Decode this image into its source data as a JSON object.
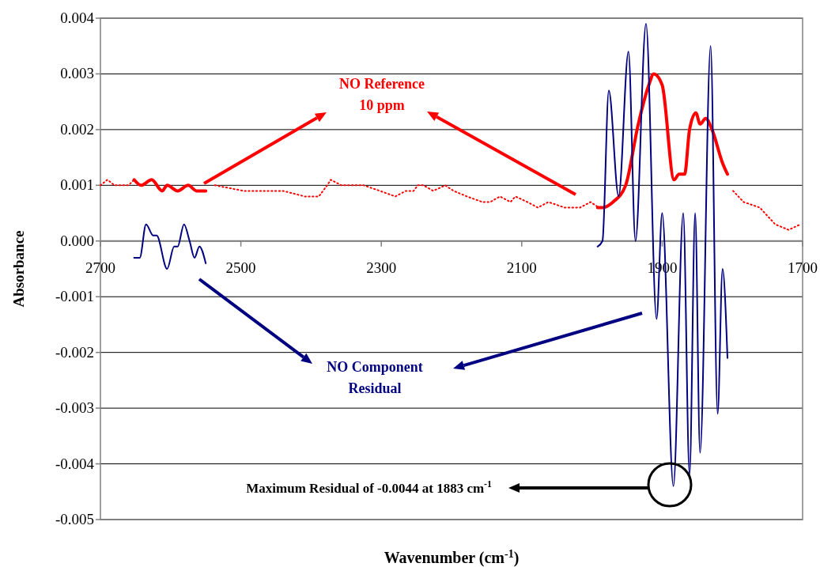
{
  "chart_data": {
    "type": "line",
    "xlabel": "Wavenumber (cm$^{-1}$)",
    "ylabel": "Absorbance",
    "xlim": [
      2700,
      1700
    ],
    "ylim": [
      -0.005,
      0.004
    ],
    "xticks": [
      2700,
      2500,
      2300,
      2100,
      1900,
      1700
    ],
    "yticks": [
      {
        "value": 0.004,
        "label": "0.004"
      },
      {
        "value": 0.003,
        "label": "0.003"
      },
      {
        "value": 0.002,
        "label": "0.002"
      },
      {
        "value": 0.001,
        "label": "0.001"
      },
      {
        "value": 0,
        "label": "0.000"
      },
      {
        "value": -0.001,
        "label": "-0.001"
      },
      {
        "value": -0.002,
        "label": "-0.002"
      },
      {
        "value": -0.003,
        "label": "-0.003"
      },
      {
        "value": -0.004,
        "label": "-0.004"
      },
      {
        "value": -0.005,
        "label": "-0.005"
      }
    ],
    "grid": "y",
    "marker": "none",
    "series": [
      {
        "color": "#ff0000",
        "line_style": "dotted",
        "x": [
          2700,
          2690,
          2680,
          2670,
          2660,
          2652,
          2550,
          2537,
          2496,
          2440,
          2409,
          2389,
          2377,
          2372,
          2357,
          2333,
          2325,
          2302,
          2280,
          2265,
          2254,
          2248,
          2240,
          2226,
          2209,
          2197,
          2178,
          2156,
          2145,
          2131,
          2116,
          2109,
          2092,
          2077,
          2062,
          2039,
          2017,
          2002,
          1990,
          1807,
          1799,
          1784,
          1761,
          1739,
          1720,
          1703
        ],
        "values": [
          0.001,
          0.0011,
          0.001,
          0.001,
          0.001,
          0.0011,
          null,
          0.001,
          0.0009,
          0.0009,
          0.0008,
          0.0008,
          0.001,
          0.0011,
          0.001,
          0.001,
          0.001,
          0.0009,
          0.0008,
          0.0009,
          0.0009,
          0.001,
          0.001,
          0.0009,
          0.001,
          0.0009,
          0.0008,
          0.0007,
          0.0007,
          0.0008,
          0.0007,
          0.0008,
          0.0007,
          0.0006,
          0.0007,
          0.0006,
          0.0006,
          0.0007,
          0.0006,
          null,
          0.0009,
          0.0007,
          0.0006,
          0.0003,
          0.0002,
          0.0003
        ]
      },
      {
        "color": "#ff0000",
        "line_style": "solid",
        "x": [
          2652,
          2642,
          2627,
          2612,
          2605,
          2590,
          2575,
          2563,
          2550,
          2000,
          1992,
          1985,
          1970,
          1952,
          1934,
          1919,
          1912,
          1900,
          1883,
          1876,
          1868,
          1861,
          1852,
          1846,
          1838,
          1829,
          1814,
          1807
        ],
        "values": [
          0.0011,
          0.001,
          0.0011,
          0.0009,
          0.001,
          0.0009,
          0.001,
          0.0009,
          0.0009,
          null,
          0.0006,
          0.0006,
          0.0007,
          0.001,
          0.0021,
          0.0028,
          0.003,
          0.0028,
          0.0011,
          0.0012,
          0.0012,
          0.002,
          0.0023,
          0.0021,
          0.0022,
          0.002,
          0.0014,
          0.0012
        ]
      },
      {
        "color": "#000080",
        "line_style": "solid",
        "x": [
          2652,
          2644,
          2635,
          2625,
          2620,
          2605,
          2595,
          2590,
          2581,
          2573,
          2566,
          2559,
          2550,
          2000,
          1992,
          1985,
          1976,
          1962,
          1948,
          1938,
          1923,
          1908,
          1900,
          1884,
          1870,
          1861,
          1853,
          1846,
          1831,
          1821,
          1814,
          1807
        ],
        "values": [
          -0.0003,
          -0.0003,
          0.0003,
          0.0001,
          0.0001,
          -0.0005,
          -0.0001,
          -0.0001,
          0.0003,
          0,
          -0.0003,
          -0.0001,
          -0.0004,
          null,
          -0.0001,
          0,
          0.0027,
          0.0008,
          0.0034,
          0,
          0.0039,
          -0.0014,
          0.0005,
          -0.0044,
          0.0005,
          -0.0042,
          0.0005,
          -0.0038,
          0.0035,
          -0.0031,
          -0.0005,
          -0.0021
        ]
      }
    ],
    "annotations": [
      "NO Reference\n10 ppm",
      "NO Component\nResidual",
      "Maximum Residual of -0.0044 at 1883 cm$^{-1}$"
    ]
  }
}
